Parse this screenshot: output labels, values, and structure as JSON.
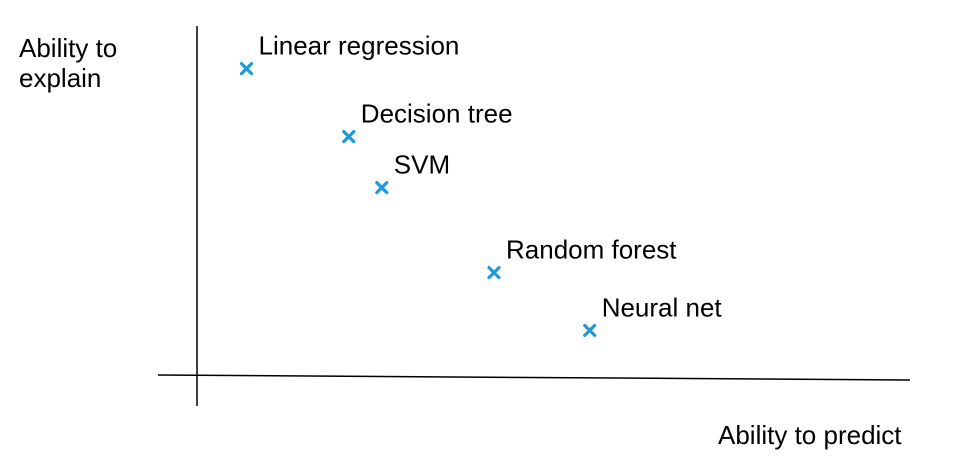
{
  "chart_data": {
    "type": "scatter",
    "xlabel": "Ability to predict",
    "ylabel": [
      "Ability to",
      "explain"
    ],
    "marker_color": "#1f9ad6",
    "marker": "x-icon",
    "points": [
      {
        "label": "Linear regression",
        "x": 1.5,
        "y": 8.9
      },
      {
        "label": "Decision tree",
        "x": 4.6,
        "y": 6.9
      },
      {
        "label": "SVM",
        "x": 5.6,
        "y": 5.4
      },
      {
        "label": "Random forest",
        "x": 9.0,
        "y": 2.9
      },
      {
        "label": "Neural net",
        "x": 11.9,
        "y": 1.2
      }
    ],
    "xlim": [
      0,
      19
    ],
    "ylim": [
      -0.2,
      10
    ],
    "grid": false,
    "legend": "none"
  }
}
